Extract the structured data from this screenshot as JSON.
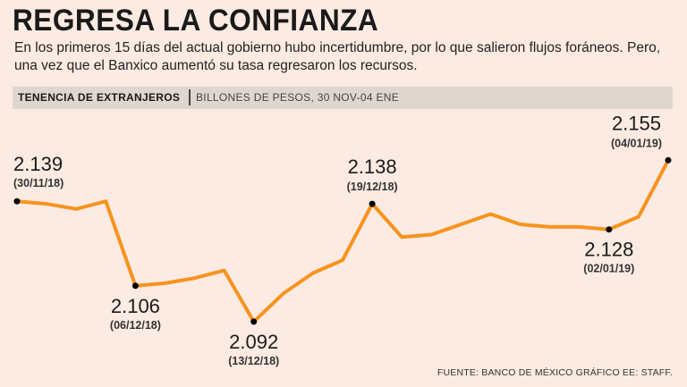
{
  "title": "REGRESA LA CONFIANZA",
  "subtitle": "En los primeros 15 días del actual gobierno hubo incertidumbre, por lo que salieron flujos foráneos. Pero, una vez que el Banxico aumentó su tasa regresaron los recursos.",
  "header_bar": {
    "label": "TENENCIA DE EXTRANJEROS",
    "unit": "BILLONES DE PESOS, 30 NOV-04 ENE"
  },
  "source": "FUENTE: BANCO DE MÉXICO GRÁFICO EE: STAFF.",
  "colors": {
    "line": "#f7931e",
    "marker": "#000000",
    "background": "#fcebe2"
  },
  "chart_data": {
    "type": "line",
    "title": "TENENCIA DE EXTRANJEROS",
    "ylabel": "BILLONES DE PESOS",
    "grid": false,
    "legend": "none",
    "ylim": [
      2.085,
      2.16
    ],
    "values": [
      2.139,
      2.138,
      2.136,
      2.139,
      2.106,
      2.107,
      2.109,
      2.112,
      2.092,
      2.103,
      2.111,
      2.116,
      2.138,
      2.125,
      2.126,
      2.13,
      2.134,
      2.13,
      2.129,
      2.129,
      2.128,
      2.133,
      2.155
    ],
    "annotations": [
      {
        "index": 0,
        "value": "2.139",
        "date": "(30/11/18)"
      },
      {
        "index": 4,
        "value": "2.106",
        "date": "(06/12/18)"
      },
      {
        "index": 8,
        "value": "2.092",
        "date": "(13/12/18)"
      },
      {
        "index": 12,
        "value": "2.138",
        "date": "(19/12/18)"
      },
      {
        "index": 20,
        "value": "2.128",
        "date": "(02/01/19)"
      },
      {
        "index": 22,
        "value": "2.155",
        "date": "(04/01/19)"
      }
    ]
  }
}
